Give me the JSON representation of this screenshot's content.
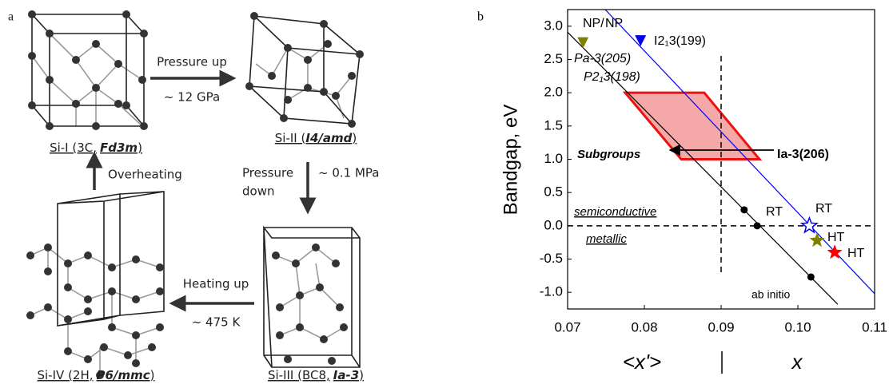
{
  "panel_a": {
    "label": "a",
    "phases": [
      {
        "name": "Si-I (3C,",
        "group": "Fd3m",
        "close": ")"
      },
      {
        "name": "Si-II (",
        "group": "I4/amd",
        "close": ")"
      },
      {
        "name": "Si-III (BC8,",
        "group": "Ia-3",
        "close": ")"
      },
      {
        "name": "Si-IV (2H,",
        "group": "P6/mmc",
        "close": ")"
      }
    ],
    "transitions": [
      {
        "lines": [
          "Pressure up"
        ],
        "condition": "~ 12 GPa"
      },
      {
        "lines": [
          "Pressure",
          "down"
        ],
        "condition": "~ 0.1 MPa"
      },
      {
        "lines": [
          "Heating up"
        ],
        "condition": "~ 475 K"
      },
      {
        "lines": [
          "Overheating"
        ]
      }
    ]
  },
  "chart_data": {
    "type": "scatter",
    "panel_label": "b",
    "y_label": "Bandgap, eV",
    "x_labels": [
      "<x'>",
      "x"
    ],
    "xlim": [
      0.07,
      0.11
    ],
    "xticks": [
      0.07,
      0.08,
      0.09,
      {
        "value": 0.1,
        "label": "0.10"
      },
      0.11
    ],
    "ylim": [
      -1.25,
      3.25
    ],
    "yticks": [
      {
        "value": -1,
        "label": "-1.0"
      },
      -0.5,
      {
        "value": 0,
        "label": "0.0"
      },
      0.5,
      {
        "value": 1,
        "label": "1.0"
      },
      1.5,
      {
        "value": 2,
        "label": "2.0"
      },
      2.5,
      {
        "value": 3,
        "label": "3.0"
      }
    ],
    "series": [
      {
        "style": "line",
        "color": "#000000",
        "x": [
          0.07,
          0.1052
        ],
        "values": [
          2.91,
          -1.18
        ]
      },
      {
        "style": "line",
        "color": "#0000ff",
        "x": [
          0.0749,
          0.11
        ],
        "values": [
          3.25,
          -1.02
        ]
      },
      {
        "style": "marker",
        "marker": "circle",
        "color": "#000000",
        "x": [
          0.093,
          0.0947,
          0.1017
        ],
        "values": [
          0.24,
          0,
          -0.77
        ]
      },
      {
        "style": "marker",
        "marker": "triangle-down",
        "color": "#0000ff",
        "x": [
          0.0795
        ],
        "values": [
          2.78
        ]
      },
      {
        "style": "marker",
        "marker": "triangle-down",
        "color": "#808000",
        "x": [
          0.072
        ],
        "values": [
          2.75
        ]
      },
      {
        "style": "marker",
        "marker": "star-open",
        "color": "#0000ff",
        "x": [
          0.1015
        ],
        "values": [
          0
        ]
      },
      {
        "style": "marker",
        "marker": "star",
        "color": "#808000",
        "x": [
          0.1025
        ],
        "values": [
          -0.22
        ]
      },
      {
        "style": "marker",
        "marker": "star",
        "color": "#ff0000",
        "x": [
          0.1048
        ],
        "values": [
          -0.4
        ]
      }
    ],
    "region": {
      "x": [
        0.0775,
        0.0878,
        0.095,
        0.0848
      ],
      "values": [
        2,
        2,
        1,
        1
      ],
      "color": "#ee1111",
      "fill": "#f5a8a8"
    },
    "hline": 0,
    "vline": 0.09,
    "annotations": [
      {
        "text": "NP/",
        "color": "#808000"
      },
      {
        "text": "NP",
        "color": "#0000ff"
      },
      {
        "text": "I2₁3(199)",
        "color": "#0000ff"
      },
      {
        "text": "Pa-3(205)",
        "color": "#808000"
      },
      {
        "text": "P2₁3(198)",
        "color": "#808000"
      },
      {
        "text": "Subgroups",
        "color": "#000000"
      },
      {
        "text": "Ia-3(206)",
        "color": "#000000"
      },
      {
        "text": "semiconductive",
        "color": "#000000"
      },
      {
        "text": "metallic",
        "color": "#000000"
      },
      {
        "text": "RT",
        "color": "#0000ff"
      },
      {
        "text": "RT",
        "color": "#000000"
      },
      {
        "text": "HT",
        "color": "#808000"
      },
      {
        "text": "HT",
        "color": "#ff0000"
      },
      {
        "text": "ab initio",
        "color": "#000000"
      }
    ]
  }
}
